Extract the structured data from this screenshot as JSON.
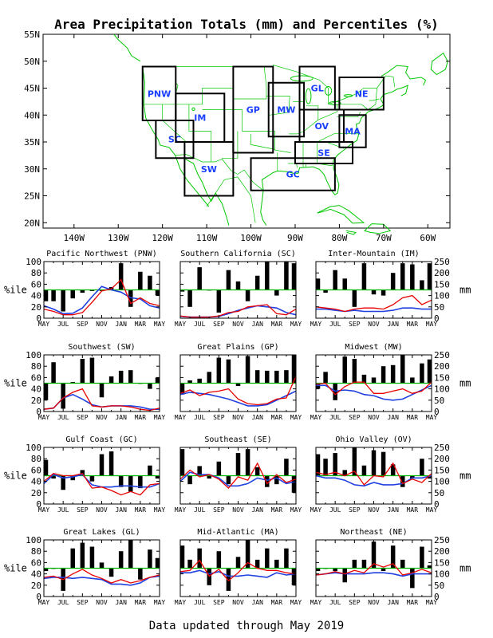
{
  "title": "Area Precipitation Totals (mm) and Percentiles (%)",
  "footer": "Data updated through May 2019",
  "map": {
    "lat_labels": [
      "55N",
      "50N",
      "45N",
      "40N",
      "35N",
      "30N",
      "25N",
      "20N"
    ],
    "lon_labels": [
      "140W",
      "130W",
      "120W",
      "110W",
      "100W",
      "90W",
      "80W",
      "70W",
      "60W"
    ],
    "colors": {
      "land": "#00c800",
      "box": "#000000",
      "region_label": "#1a3fff"
    },
    "regions": [
      {
        "code": "PNW",
        "lon": [
          -124.5,
          -117
        ],
        "lat": [
          39,
          49
        ]
      },
      {
        "code": "SC",
        "lon": [
          -121.5,
          -113
        ],
        "lat": [
          32,
          39
        ]
      },
      {
        "code": "IM",
        "lon": [
          -117,
          -106
        ],
        "lat": [
          35,
          44
        ]
      },
      {
        "code": "SW",
        "lon": [
          -115,
          -104
        ],
        "lat": [
          25,
          35
        ]
      },
      {
        "code": "GP",
        "lon": [
          -104,
          -95
        ],
        "lat": [
          33,
          49
        ]
      },
      {
        "code": "MW",
        "lon": [
          -96,
          -88
        ],
        "lat": [
          36,
          46
        ]
      },
      {
        "code": "GL",
        "lon": [
          -89,
          -81
        ],
        "lat": [
          41,
          49
        ]
      },
      {
        "code": "NE",
        "lon": [
          -80,
          -70
        ],
        "lat": [
          41,
          47
        ]
      },
      {
        "code": "OV",
        "lon": [
          -89,
          -79
        ],
        "lat": [
          35,
          41
        ]
      },
      {
        "code": "MA",
        "lon": [
          -80,
          -74
        ],
        "lat": [
          34,
          40
        ]
      },
      {
        "code": "SE",
        "lon": [
          -90,
          -77
        ],
        "lat": [
          31,
          35
        ]
      },
      {
        "code": "GC",
        "lon": [
          -100,
          -81
        ],
        "lat": [
          26,
          32
        ]
      }
    ]
  },
  "chart_data": {
    "type": "bar+line",
    "months": [
      "MAY",
      "JUN",
      "JUL",
      "AUG",
      "SEP",
      "OCT",
      "NOV",
      "DEC",
      "JAN",
      "FEB",
      "MAR",
      "APR",
      "MAY"
    ],
    "x_tick_labels": [
      "MAY",
      "JUL",
      "SEP",
      "NOV",
      "JAN",
      "MAR",
      "MAY"
    ],
    "left_axis": {
      "label": "%ile",
      "ticks": [
        0,
        20,
        40,
        60,
        80,
        100
      ],
      "range": [
        0,
        100
      ]
    },
    "right_axis": {
      "label": "mm",
      "ticks": [
        0,
        50,
        100,
        150,
        200,
        250
      ],
      "range": [
        0,
        250
      ]
    },
    "reference_line": 50,
    "colors": {
      "bars": "#000000",
      "total": "#e80000",
      "normal": "#2040e0",
      "reference": "#00b400"
    },
    "panels": [
      {
        "title": "Pacific Northwest (PNW)",
        "percentile": [
          30,
          30,
          12,
          35,
          45,
          48,
          48,
          55,
          97,
          20,
          82,
          75,
          40
        ],
        "total": [
          40,
          30,
          15,
          15,
          25,
          70,
          120,
          130,
          170,
          65,
          90,
          65,
          55
        ],
        "normal": [
          55,
          40,
          20,
          22,
          45,
          95,
          140,
          125,
          115,
          90,
          85,
          55,
          45
        ]
      },
      {
        "title": "Southern California (SC)",
        "percentile": [
          47,
          20,
          90,
          50,
          10,
          85,
          65,
          30,
          75,
          100,
          40,
          100,
          97
        ],
        "total": [
          10,
          5,
          5,
          5,
          10,
          25,
          30,
          50,
          55,
          60,
          20,
          15,
          40
        ],
        "normal": [
          8,
          5,
          5,
          5,
          8,
          20,
          35,
          45,
          55,
          50,
          45,
          25,
          15
        ]
      },
      {
        "title": "Inter-Mountain (IM)",
        "percentile": [
          70,
          45,
          85,
          70,
          20,
          97,
          42,
          40,
          80,
          97,
          95,
          67,
          97
        ],
        "total": [
          50,
          45,
          40,
          30,
          40,
          45,
          45,
          40,
          60,
          90,
          100,
          60,
          80
        ],
        "normal": [
          40,
          40,
          35,
          30,
          35,
          30,
          30,
          30,
          35,
          45,
          45,
          40,
          40
        ]
      },
      {
        "title": "Southwest (SW)",
        "percentile": [
          20,
          87,
          5,
          52,
          93,
          95,
          25,
          62,
          72,
          73,
          50,
          40,
          60
        ],
        "total": [
          10,
          15,
          60,
          85,
          100,
          25,
          20,
          25,
          25,
          20,
          10,
          5,
          15
        ],
        "normal": [
          10,
          15,
          60,
          75,
          55,
          30,
          20,
          25,
          25,
          25,
          20,
          10,
          10
        ]
      },
      {
        "title": "Great Plains (GP)",
        "percentile": [
          30,
          55,
          58,
          70,
          95,
          92,
          45,
          98,
          73,
          72,
          72,
          73,
          100
        ],
        "total": [
          80,
          95,
          70,
          85,
          90,
          100,
          55,
          35,
          30,
          35,
          55,
          60,
          155
        ],
        "normal": [
          75,
          85,
          80,
          75,
          65,
          55,
          40,
          25,
          25,
          30,
          50,
          70,
          90
        ]
      },
      {
        "title": "Midwest (MW)",
        "percentile": [
          40,
          70,
          20,
          97,
          93,
          65,
          60,
          80,
          82,
          100,
          60,
          85,
          92
        ],
        "total": [
          120,
          125,
          75,
          110,
          130,
          130,
          80,
          80,
          90,
          100,
          80,
          90,
          130
        ],
        "normal": [
          115,
          115,
          90,
          95,
          90,
          75,
          70,
          55,
          50,
          55,
          75,
          95,
          115
        ]
      },
      {
        "title": "Gulf Coast (GC)",
        "percentile": [
          78,
          45,
          25,
          42,
          60,
          40,
          88,
          93,
          30,
          22,
          28,
          68,
          45
        ],
        "total": [
          100,
          135,
          125,
          125,
          135,
          70,
          75,
          60,
          40,
          55,
          40,
          85,
          90
        ],
        "normal": [
          90,
          130,
          115,
          120,
          130,
          85,
          75,
          75,
          80,
          80,
          75,
          75,
          90
        ]
      },
      {
        "title": "Southeast (SE)",
        "percentile": [
          97,
          35,
          67,
          45,
          75,
          35,
          90,
          97,
          65,
          30,
          35,
          80,
          20
        ],
        "total": [
          110,
          150,
          120,
          130,
          110,
          70,
          120,
          105,
          180,
          90,
          130,
          95,
          110
        ],
        "normal": [
          100,
          140,
          130,
          130,
          115,
          80,
          80,
          90,
          115,
          105,
          115,
          90,
          100
        ]
      },
      {
        "title": "Ohio Valley (OV)",
        "percentile": [
          88,
          80,
          90,
          60,
          100,
          68,
          95,
          92,
          70,
          30,
          45,
          80,
          45
        ],
        "total": [
          140,
          130,
          140,
          125,
          145,
          85,
          125,
          120,
          180,
          90,
          110,
          95,
          135
        ],
        "normal": [
          125,
          115,
          115,
          105,
          85,
          80,
          95,
          85,
          85,
          90,
          115,
          115,
          125
        ]
      },
      {
        "title": "Great Lakes (GL)",
        "percentile": [
          45,
          50,
          10,
          85,
          95,
          88,
          60,
          35,
          80,
          100,
          30,
          83,
          68
        ],
        "total": [
          85,
          90,
          75,
          100,
          120,
          95,
          80,
          60,
          75,
          60,
          70,
          85,
          95
        ],
        "normal": [
          80,
          85,
          85,
          80,
          85,
          80,
          75,
          55,
          55,
          50,
          60,
          85,
          90
        ]
      },
      {
        "title": "Mid-Atlantic (MA)",
        "percentile": [
          90,
          65,
          85,
          20,
          80,
          10,
          70,
          100,
          65,
          85,
          65,
          85,
          20
        ],
        "total": [
          110,
          115,
          160,
          90,
          120,
          70,
          105,
          150,
          125,
          115,
          115,
          105,
          100
        ],
        "normal": [
          105,
          105,
          115,
          100,
          110,
          90,
          90,
          95,
          90,
          85,
          105,
          95,
          100
        ]
      },
      {
        "title": "Northeast (NE)",
        "percentile": [
          45,
          50,
          45,
          25,
          65,
          65,
          97,
          45,
          90,
          65,
          15,
          88,
          55
        ],
        "total": [
          95,
          100,
          110,
          100,
          115,
          105,
          145,
          130,
          145,
          95,
          105,
          120,
          105
        ],
        "normal": [
          95,
          100,
          105,
          100,
          100,
          100,
          105,
          105,
          100,
          90,
          100,
          100,
          100
        ]
      }
    ]
  }
}
